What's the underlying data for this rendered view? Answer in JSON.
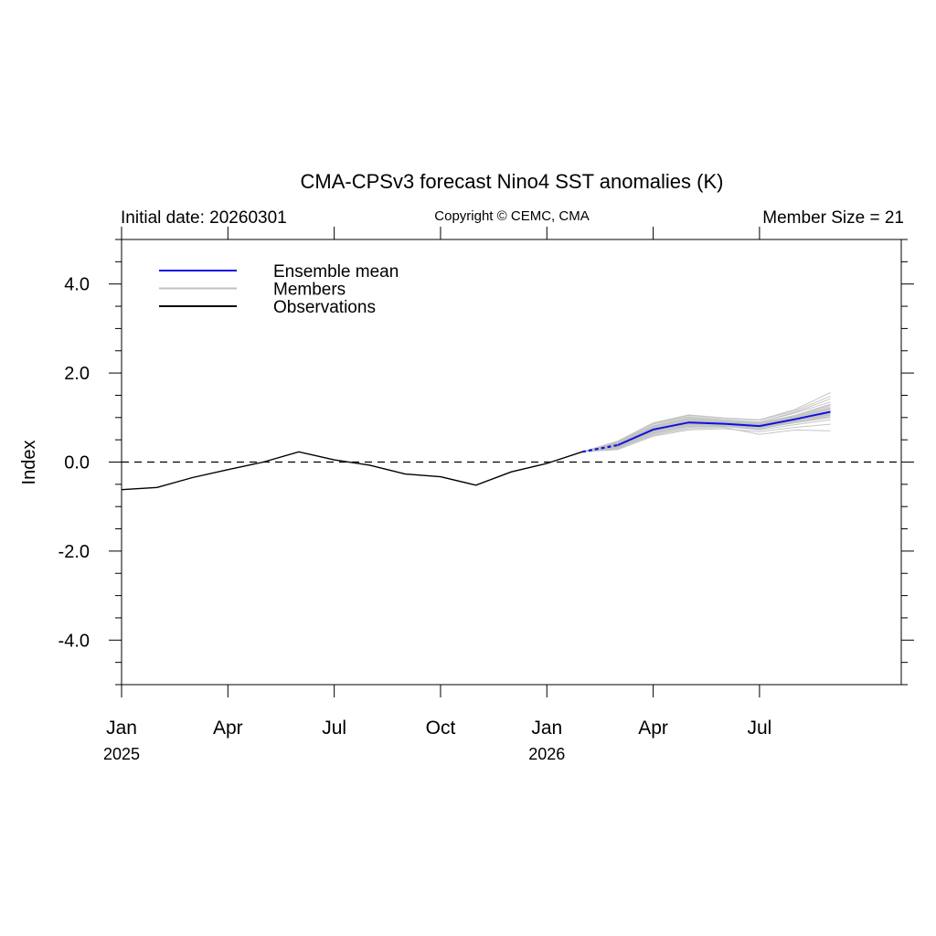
{
  "page": {
    "title": "CMA-CPSv3 forecast Nino4 SST anomalies (K)",
    "left_subtitle": "Initial date: 20260301",
    "center_subtitle": "Copyright © CEMC, CMA",
    "right_subtitle": "Member Size = 21"
  },
  "colors": {
    "ensemble_mean": "#1010e0",
    "members": "#c0c0c0",
    "observations": "#000000",
    "zero_line": "#000000"
  },
  "chart_data": {
    "type": "line",
    "ylabel": "Index",
    "ylim": [
      -5.0,
      5.0
    ],
    "xlim": [
      "2025-01",
      "2026-11"
    ],
    "y_ticks": [
      {
        "value": 4.0,
        "label": "4.0"
      },
      {
        "value": 2.0,
        "label": "2.0"
      },
      {
        "value": 0.0,
        "label": "0.0"
      },
      {
        "value": -2.0,
        "label": "-2.0"
      },
      {
        "value": -4.0,
        "label": "-4.0"
      }
    ],
    "x_ticks": [
      {
        "value": "2025-01",
        "label": "Jan",
        "year": "2025"
      },
      {
        "value": "2025-04",
        "label": "Apr",
        "year": ""
      },
      {
        "value": "2025-07",
        "label": "Jul",
        "year": ""
      },
      {
        "value": "2025-10",
        "label": "Oct",
        "year": ""
      },
      {
        "value": "2026-01",
        "label": "Jan",
        "year": "2026"
      },
      {
        "value": "2026-04",
        "label": "Apr",
        "year": ""
      },
      {
        "value": "2026-07",
        "label": "Jul",
        "year": ""
      }
    ],
    "reference_line": {
      "y": 0.0,
      "style": "dashed"
    },
    "legend": {
      "position": "top-left",
      "entries": [
        "Ensemble mean",
        "Members",
        "Observations"
      ]
    },
    "series": [
      {
        "name": "Observations",
        "x": [
          "2025-01",
          "2025-02",
          "2025-03",
          "2025-04",
          "2025-05",
          "2025-06",
          "2025-07",
          "2025-08",
          "2025-09",
          "2025-10",
          "2025-11",
          "2025-12",
          "2026-01",
          "2026-02"
        ],
        "values": [
          -0.62,
          -0.57,
          -0.35,
          -0.17,
          0.0,
          0.23,
          0.05,
          -0.07,
          -0.27,
          -0.33,
          -0.52,
          -0.22,
          -0.03,
          0.23
        ]
      },
      {
        "name": "Ensemble mean",
        "x": [
          "2026-02",
          "2026-03",
          "2026-04",
          "2026-05",
          "2026-06",
          "2026-07",
          "2026-08",
          "2026-09"
        ],
        "values": [
          0.23,
          0.38,
          0.73,
          0.89,
          0.86,
          0.81,
          0.96,
          1.13
        ]
      },
      {
        "name": "Members",
        "x": [
          "2026-02",
          "2026-03",
          "2026-04",
          "2026-05",
          "2026-06",
          "2026-07",
          "2026-08",
          "2026-09"
        ],
        "members": [
          [
            0.23,
            0.3,
            0.62,
            0.78,
            0.8,
            0.74,
            0.9,
            1.05
          ],
          [
            0.23,
            0.35,
            0.7,
            0.85,
            0.84,
            0.78,
            0.92,
            1.1
          ],
          [
            0.23,
            0.4,
            0.78,
            0.95,
            0.9,
            0.86,
            1.02,
            1.25
          ],
          [
            0.23,
            0.45,
            0.85,
            1.02,
            0.95,
            0.9,
            1.1,
            1.35
          ],
          [
            0.23,
            0.42,
            0.8,
            0.98,
            0.92,
            0.88,
            1.05,
            1.3
          ],
          [
            0.23,
            0.33,
            0.65,
            0.82,
            0.82,
            0.76,
            0.88,
            1.0
          ],
          [
            0.23,
            0.38,
            0.72,
            0.88,
            0.86,
            0.82,
            0.96,
            1.15
          ],
          [
            0.23,
            0.36,
            0.68,
            0.86,
            0.85,
            0.8,
            0.95,
            1.12
          ],
          [
            0.23,
            0.41,
            0.76,
            0.92,
            0.88,
            0.84,
            1.0,
            1.2
          ],
          [
            0.23,
            0.44,
            0.82,
            1.0,
            0.94,
            0.9,
            1.12,
            1.42
          ],
          [
            0.23,
            0.28,
            0.58,
            0.72,
            0.75,
            0.68,
            0.78,
            0.85
          ],
          [
            0.23,
            0.32,
            0.64,
            0.8,
            0.8,
            0.72,
            0.84,
            0.95
          ],
          [
            0.23,
            0.39,
            0.74,
            0.9,
            0.87,
            0.83,
            0.98,
            1.18
          ],
          [
            0.23,
            0.46,
            0.86,
            1.05,
            0.98,
            0.94,
            1.15,
            1.48
          ],
          [
            0.23,
            0.34,
            0.66,
            0.84,
            0.83,
            0.78,
            0.9,
            1.02
          ],
          [
            0.23,
            0.37,
            0.71,
            0.87,
            0.85,
            0.8,
            0.94,
            1.08
          ],
          [
            0.23,
            0.43,
            0.8,
            0.96,
            0.91,
            0.87,
            1.04,
            1.28
          ],
          [
            0.23,
            0.31,
            0.6,
            0.75,
            0.78,
            0.62,
            0.72,
            0.7
          ],
          [
            0.23,
            0.4,
            0.77,
            0.93,
            0.89,
            0.85,
            1.01,
            1.22
          ],
          [
            0.23,
            0.36,
            0.69,
            0.86,
            0.84,
            0.79,
            0.93,
            1.06
          ],
          [
            0.23,
            0.47,
            0.88,
            1.06,
            0.99,
            0.95,
            1.18,
            1.56
          ]
        ]
      }
    ]
  }
}
